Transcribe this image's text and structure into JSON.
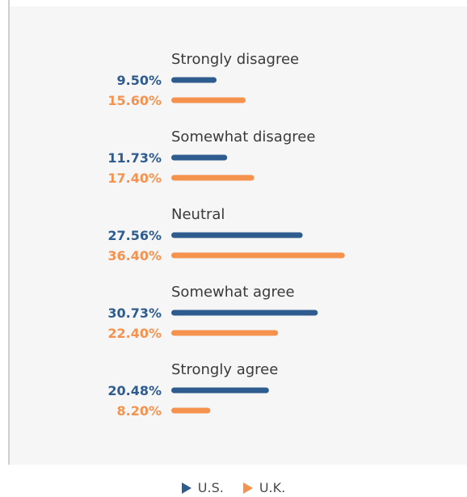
{
  "chart_data": {
    "type": "bar",
    "orientation": "horizontal",
    "categories": [
      "Strongly disagree",
      "Somewhat disagree",
      "Neutral",
      "Somewhat agree",
      "Strongly agree"
    ],
    "series": [
      {
        "name": "U.S.",
        "color": "#2f5c8f",
        "values": [
          9.5,
          11.73,
          27.56,
          30.73,
          20.48
        ],
        "labels": [
          "9.50%",
          "11.73%",
          "27.56%",
          "30.73%",
          "20.48%"
        ]
      },
      {
        "name": "U.K.",
        "color": "#f5924e",
        "values": [
          15.6,
          17.4,
          36.4,
          22.4,
          8.2
        ],
        "labels": [
          "15.60%",
          "17.40%",
          "36.40%",
          "22.40%",
          "8.20%"
        ]
      }
    ],
    "xlim": [
      0,
      40
    ],
    "grid": false,
    "legend": "bottom-center"
  },
  "legend": {
    "items": [
      {
        "label": "U.S.",
        "color": "#2f5c8f"
      },
      {
        "label": "U.K.",
        "color": "#f5924e"
      }
    ]
  }
}
